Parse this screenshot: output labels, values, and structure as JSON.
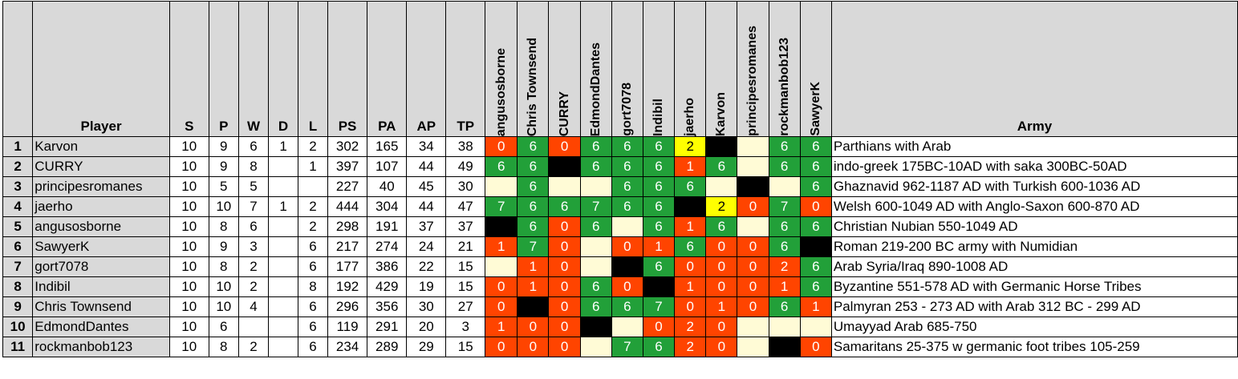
{
  "headers": {
    "rank": "",
    "player": "Player",
    "stats": [
      "S",
      "P",
      "W",
      "D",
      "L",
      "PS",
      "PA",
      "AP",
      "TP"
    ],
    "opponents": [
      "angusosborne",
      "Chris Townsend",
      "CURRY",
      "EdmondDantes",
      "gort7078",
      "Indibil",
      "jaerho",
      "Karvon",
      "principesromanes",
      "rockmanbob123",
      "SawyerK"
    ],
    "army": "Army"
  },
  "colors": {
    "red": "#ff4400",
    "green": "#22a039",
    "yellow": "#ffff00",
    "black": "#000000",
    "cream": "#fffbd6",
    "header_gray": "#d9d9d9"
  },
  "rows": [
    {
      "rank": "1",
      "player": "Karvon",
      "stats": [
        "10",
        "9",
        "6",
        "1",
        "2",
        "302",
        "165",
        "34",
        "38"
      ],
      "cells": [
        {
          "v": "0",
          "c": "red"
        },
        {
          "v": "6",
          "c": "green"
        },
        {
          "v": "0",
          "c": "red"
        },
        {
          "v": "6",
          "c": "green"
        },
        {
          "v": "6",
          "c": "green"
        },
        {
          "v": "6",
          "c": "green"
        },
        {
          "v": "2",
          "c": "yellow"
        },
        {
          "v": "",
          "c": "black"
        },
        {
          "v": "",
          "c": "cream"
        },
        {
          "v": "6",
          "c": "green"
        },
        {
          "v": "6",
          "c": "green"
        }
      ],
      "army": "Parthians with Arab"
    },
    {
      "rank": "2",
      "player": "CURRY",
      "stats": [
        "10",
        "9",
        "8",
        "",
        "1",
        "397",
        "107",
        "44",
        "49"
      ],
      "cells": [
        {
          "v": "6",
          "c": "green"
        },
        {
          "v": "6",
          "c": "green"
        },
        {
          "v": "",
          "c": "black"
        },
        {
          "v": "6",
          "c": "green"
        },
        {
          "v": "6",
          "c": "green"
        },
        {
          "v": "6",
          "c": "green"
        },
        {
          "v": "1",
          "c": "red"
        },
        {
          "v": "6",
          "c": "green"
        },
        {
          "v": "",
          "c": "cream"
        },
        {
          "v": "6",
          "c": "green"
        },
        {
          "v": "6",
          "c": "green"
        }
      ],
      "army": "indo-greek 175BC-10AD with saka 300BC-50AD"
    },
    {
      "rank": "3",
      "player": "principesromanes",
      "stats": [
        "10",
        "5",
        "5",
        "",
        "",
        "227",
        "40",
        "45",
        "30"
      ],
      "cells": [
        {
          "v": "",
          "c": "cream"
        },
        {
          "v": "6",
          "c": "green"
        },
        {
          "v": "",
          "c": "cream"
        },
        {
          "v": "",
          "c": "cream"
        },
        {
          "v": "6",
          "c": "green"
        },
        {
          "v": "6",
          "c": "green"
        },
        {
          "v": "6",
          "c": "green"
        },
        {
          "v": "",
          "c": "cream"
        },
        {
          "v": "",
          "c": "black"
        },
        {
          "v": "",
          "c": "cream"
        },
        {
          "v": "6",
          "c": "green"
        }
      ],
      "army": "Ghaznavid 962-1187 AD with Turkish 600-1036 AD"
    },
    {
      "rank": "4",
      "player": "jaerho",
      "stats": [
        "10",
        "10",
        "7",
        "1",
        "2",
        "444",
        "304",
        "44",
        "47"
      ],
      "cells": [
        {
          "v": "7",
          "c": "green"
        },
        {
          "v": "6",
          "c": "green"
        },
        {
          "v": "6",
          "c": "green"
        },
        {
          "v": "7",
          "c": "green"
        },
        {
          "v": "6",
          "c": "green"
        },
        {
          "v": "6",
          "c": "green"
        },
        {
          "v": "",
          "c": "black"
        },
        {
          "v": "2",
          "c": "yellow"
        },
        {
          "v": "0",
          "c": "red"
        },
        {
          "v": "7",
          "c": "green"
        },
        {
          "v": "0",
          "c": "red"
        }
      ],
      "army": "Welsh 600-1049 AD with Anglo-Saxon 600-870 AD"
    },
    {
      "rank": "5",
      "player": "angusosborne",
      "stats": [
        "10",
        "8",
        "6",
        "",
        "2",
        "298",
        "191",
        "37",
        "37"
      ],
      "cells": [
        {
          "v": "",
          "c": "black"
        },
        {
          "v": "6",
          "c": "green"
        },
        {
          "v": "0",
          "c": "red"
        },
        {
          "v": "6",
          "c": "green"
        },
        {
          "v": "",
          "c": "cream"
        },
        {
          "v": "6",
          "c": "green"
        },
        {
          "v": "1",
          "c": "red"
        },
        {
          "v": "6",
          "c": "green"
        },
        {
          "v": "",
          "c": "cream"
        },
        {
          "v": "6",
          "c": "green"
        },
        {
          "v": "6",
          "c": "green"
        }
      ],
      "army": "Christian Nubian 550-1049 AD"
    },
    {
      "rank": "6",
      "player": "SawyerK",
      "stats": [
        "10",
        "9",
        "3",
        "",
        "6",
        "217",
        "274",
        "24",
        "21"
      ],
      "cells": [
        {
          "v": "1",
          "c": "red"
        },
        {
          "v": "7",
          "c": "green"
        },
        {
          "v": "0",
          "c": "red"
        },
        {
          "v": "",
          "c": "cream"
        },
        {
          "v": "0",
          "c": "red"
        },
        {
          "v": "1",
          "c": "red"
        },
        {
          "v": "6",
          "c": "green"
        },
        {
          "v": "0",
          "c": "red"
        },
        {
          "v": "0",
          "c": "red"
        },
        {
          "v": "6",
          "c": "green"
        },
        {
          "v": "",
          "c": "black"
        }
      ],
      "army": "Roman 219-200 BC army with Numidian"
    },
    {
      "rank": "7",
      "player": "gort7078",
      "stats": [
        "10",
        "8",
        "2",
        "",
        "6",
        "177",
        "386",
        "22",
        "15"
      ],
      "cells": [
        {
          "v": "",
          "c": "cream"
        },
        {
          "v": "1",
          "c": "red"
        },
        {
          "v": "0",
          "c": "red"
        },
        {
          "v": "",
          "c": "cream"
        },
        {
          "v": "",
          "c": "black"
        },
        {
          "v": "6",
          "c": "green"
        },
        {
          "v": "0",
          "c": "red"
        },
        {
          "v": "0",
          "c": "red"
        },
        {
          "v": "0",
          "c": "red"
        },
        {
          "v": "2",
          "c": "red"
        },
        {
          "v": "6",
          "c": "green"
        }
      ],
      "army": "Arab Syria/Iraq 890-1008 AD"
    },
    {
      "rank": "8",
      "player": "Indibil",
      "stats": [
        "10",
        "10",
        "2",
        "",
        "8",
        "192",
        "429",
        "19",
        "15"
      ],
      "cells": [
        {
          "v": "0",
          "c": "red"
        },
        {
          "v": "1",
          "c": "red"
        },
        {
          "v": "0",
          "c": "red"
        },
        {
          "v": "6",
          "c": "green"
        },
        {
          "v": "0",
          "c": "red"
        },
        {
          "v": "",
          "c": "black"
        },
        {
          "v": "1",
          "c": "red"
        },
        {
          "v": "0",
          "c": "red"
        },
        {
          "v": "0",
          "c": "red"
        },
        {
          "v": "1",
          "c": "red"
        },
        {
          "v": "6",
          "c": "green"
        }
      ],
      "army": "Byzantine 551-578 AD with Germanic Horse Tribes"
    },
    {
      "rank": "9",
      "player": "Chris Townsend",
      "stats": [
        "10",
        "10",
        "4",
        "",
        "6",
        "296",
        "356",
        "30",
        "27"
      ],
      "cells": [
        {
          "v": "0",
          "c": "red"
        },
        {
          "v": "",
          "c": "black"
        },
        {
          "v": "0",
          "c": "red"
        },
        {
          "v": "6",
          "c": "green"
        },
        {
          "v": "6",
          "c": "green"
        },
        {
          "v": "7",
          "c": "green"
        },
        {
          "v": "0",
          "c": "red"
        },
        {
          "v": "1",
          "c": "red"
        },
        {
          "v": "0",
          "c": "red"
        },
        {
          "v": "6",
          "c": "green"
        },
        {
          "v": "1",
          "c": "red"
        }
      ],
      "army": "Palmyran 253 - 273 AD with Arab 312 BC - 299 AD"
    },
    {
      "rank": "10",
      "player": "EdmondDantes",
      "stats": [
        "10",
        "6",
        "",
        "",
        "6",
        "119",
        "291",
        "20",
        "3"
      ],
      "cells": [
        {
          "v": "1",
          "c": "red"
        },
        {
          "v": "0",
          "c": "red"
        },
        {
          "v": "0",
          "c": "red"
        },
        {
          "v": "",
          "c": "black"
        },
        {
          "v": "",
          "c": "cream"
        },
        {
          "v": "0",
          "c": "red"
        },
        {
          "v": "2",
          "c": "red"
        },
        {
          "v": "0",
          "c": "red"
        },
        {
          "v": "",
          "c": "cream"
        },
        {
          "v": "",
          "c": "cream"
        },
        {
          "v": "",
          "c": "cream"
        }
      ],
      "army": "Umayyad Arab 685-750"
    },
    {
      "rank": "11",
      "player": "rockmanbob123",
      "stats": [
        "10",
        "8",
        "2",
        "",
        "6",
        "234",
        "289",
        "29",
        "15"
      ],
      "cells": [
        {
          "v": "0",
          "c": "red"
        },
        {
          "v": "0",
          "c": "red"
        },
        {
          "v": "0",
          "c": "red"
        },
        {
          "v": "",
          "c": "cream"
        },
        {
          "v": "7",
          "c": "green"
        },
        {
          "v": "6",
          "c": "green"
        },
        {
          "v": "2",
          "c": "red"
        },
        {
          "v": "0",
          "c": "red"
        },
        {
          "v": "",
          "c": "cream"
        },
        {
          "v": "",
          "c": "black"
        },
        {
          "v": "0",
          "c": "red"
        }
      ],
      "army": "Samaritans 25-375 w germanic foot tribes 105-259"
    }
  ]
}
